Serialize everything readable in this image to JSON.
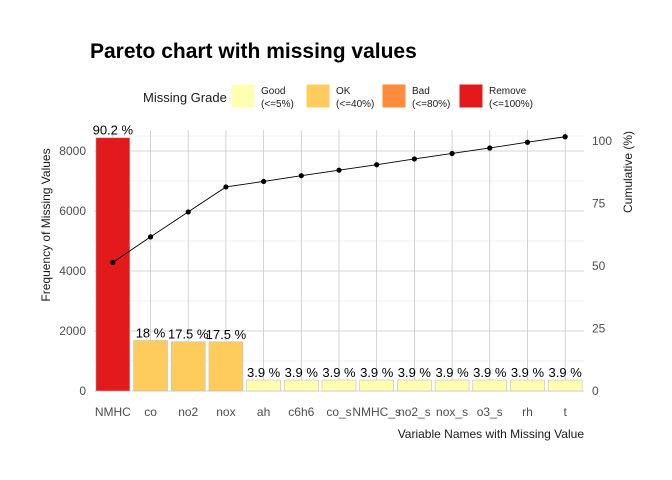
{
  "chart_data": {
    "type": "bar",
    "title": "Pareto chart with missing values",
    "xlabel": "Variable Names with Missing Value",
    "ylabel": "Frequency of Missing Values",
    "y2label": "Cumulative (%)",
    "ylim": [
      0,
      8700
    ],
    "y2lim": [
      0,
      104.5
    ],
    "yticks": [
      0,
      2000,
      4000,
      6000,
      8000
    ],
    "y2ticks": [
      0,
      25,
      50,
      75,
      100
    ],
    "grid": true,
    "legend_placement": "top",
    "legend": {
      "title": "Missing Grade",
      "items": [
        {
          "label1": "Good",
          "label2": "(<=5%)",
          "color": "#ffffb2"
        },
        {
          "label1": "OK",
          "label2": "(<=40%)",
          "color": "#fecc5c"
        },
        {
          "label1": "Bad",
          "label2": "(<=80%)",
          "color": "#fd8d3c"
        },
        {
          "label1": "Remove",
          "label2": "(<=100%)",
          "color": "#e31a1c"
        }
      ]
    },
    "categories": [
      "NMHC",
      "co",
      "no2",
      "nox",
      "ah",
      "c6h6",
      "co_s",
      "NMHC_s",
      "no2_s",
      "nox_s",
      "o3_s",
      "rh",
      "t"
    ],
    "values": [
      8443,
      1683,
      1642,
      1639,
      366,
      366,
      366,
      366,
      366,
      366,
      366,
      366,
      366
    ],
    "labels": [
      "90.2 %",
      "18 %",
      "17.5 %",
      "17.5 %",
      "3.9 %",
      "3.9 %",
      "3.9 %",
      "3.9 %",
      "3.9 %",
      "3.9 %",
      "3.9 %",
      "3.9 %",
      "3.9 %"
    ],
    "grades": [
      "Remove",
      "OK",
      "OK",
      "OK",
      "Good",
      "Good",
      "Good",
      "Good",
      "Good",
      "Good",
      "Good",
      "Good",
      "Good"
    ],
    "cumulative": [
      51.5,
      61.7,
      71.7,
      81.7,
      83.9,
      86.2,
      88.4,
      90.6,
      92.9,
      95.1,
      97.3,
      99.6,
      101.8
    ]
  }
}
